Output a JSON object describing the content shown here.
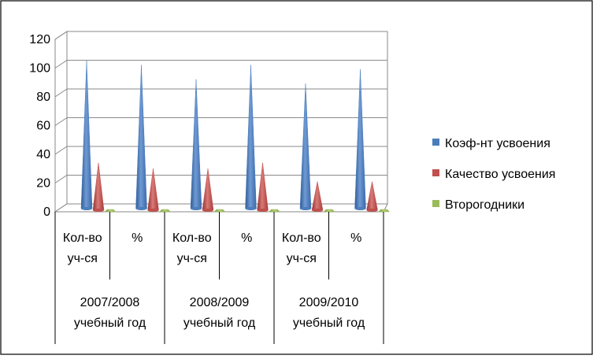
{
  "chart_data": {
    "type": "bar",
    "subtype": "3d-cone",
    "ylim": [
      0,
      120
    ],
    "yticks": [
      0,
      20,
      40,
      60,
      80,
      100,
      120
    ],
    "ytick_labels": [
      "0",
      "20",
      "40",
      "60",
      "80",
      "100",
      "120"
    ],
    "categories": [
      {
        "label_lines": [
          "Кол-во",
          "уч-ся"
        ],
        "group": 0
      },
      {
        "label_lines": [
          "%"
        ],
        "group": 0
      },
      {
        "label_lines": [
          "Кол-во",
          "уч-ся"
        ],
        "group": 1
      },
      {
        "label_lines": [
          "%"
        ],
        "group": 1
      },
      {
        "label_lines": [
          "Кол-во",
          "уч-ся"
        ],
        "group": 2
      },
      {
        "label_lines": [
          "%"
        ],
        "group": 2
      }
    ],
    "groups": [
      {
        "label_lines": [
          "2007/2008",
          "учебный год"
        ]
      },
      {
        "label_lines": [
          "2008/2009",
          "учебный год"
        ]
      },
      {
        "label_lines": [
          "2009/2010",
          "учебный год"
        ]
      }
    ],
    "series": [
      {
        "name": "Коэф-нт усвоения",
        "color": "#4a7ebb",
        "values": [
          103,
          100,
          90,
          100,
          87,
          97
        ]
      },
      {
        "name": "Качество усвоения",
        "color": "#c0504d",
        "values": [
          33,
          29,
          29,
          33,
          20,
          20
        ]
      },
      {
        "name": "Второгодники",
        "color": "#9bbb59",
        "values": [
          0,
          0,
          0,
          0,
          0,
          0
        ]
      }
    ],
    "grid": true,
    "legend_position": "right"
  }
}
